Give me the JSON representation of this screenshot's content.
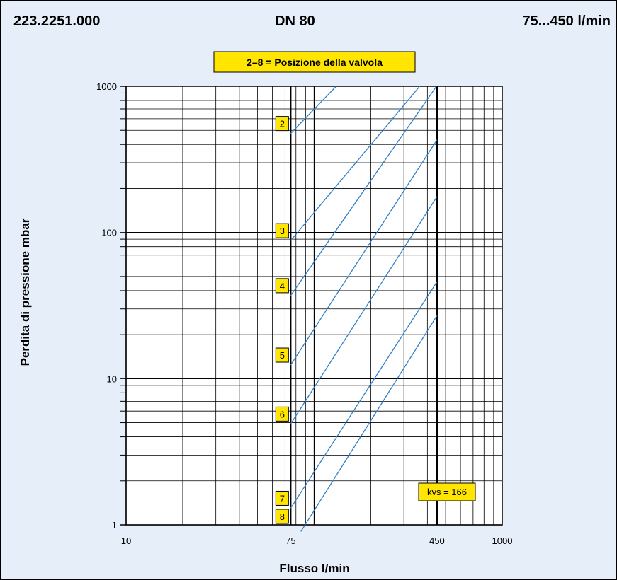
{
  "header": {
    "code": "223.2251.000",
    "size": "DN 80",
    "range": "75...450 l/min"
  },
  "chart_data": {
    "type": "line",
    "title": "2–8 = Posizione della valvola",
    "xlabel": "Flusso l/min",
    "ylabel": "Perdita di pressione mbar",
    "xscale": "log",
    "yscale": "log",
    "xlim": [
      10,
      1000
    ],
    "ylim": [
      1,
      1000
    ],
    "x_ticks": [
      "10",
      "75",
      "450",
      "1000"
    ],
    "x_tick_values": [
      10,
      75,
      450,
      1000
    ],
    "y_ticks": [
      "1",
      "10",
      "100",
      "1000"
    ],
    "y_tick_values": [
      1,
      10,
      100,
      1000
    ],
    "annotation": "kvs = 166",
    "colors": {
      "background": "#e6eef9",
      "lines": "#2d7fc7",
      "label_fill": "#ffe500"
    },
    "series": [
      {
        "name": "2",
        "x": [
          75,
          131
        ],
        "y": [
          476,
          1000
        ]
      },
      {
        "name": "3",
        "x": [
          75,
          364
        ],
        "y": [
          88,
          1000
        ]
      },
      {
        "name": "4",
        "x": [
          75,
          447
        ],
        "y": [
          37,
          1000
        ]
      },
      {
        "name": "5",
        "x": [
          75,
          450
        ],
        "y": [
          12.4,
          430
        ]
      },
      {
        "name": "6",
        "x": [
          75,
          450
        ],
        "y": [
          4.9,
          176
        ]
      },
      {
        "name": "7",
        "x": [
          75,
          450
        ],
        "y": [
          1.3,
          46
        ]
      },
      {
        "name": "8",
        "x": [
          85,
          450
        ],
        "y": [
          0.9,
          27
        ]
      }
    ]
  }
}
